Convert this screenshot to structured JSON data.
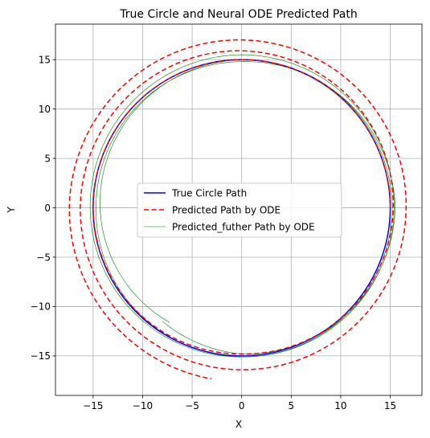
{
  "chart_data": {
    "type": "line",
    "title": "True Circle and Neural ODE Predicted Path",
    "xlabel": "X",
    "ylabel": "Y",
    "xlim": [
      -18.8,
      18.2
    ],
    "ylim": [
      -19.0,
      18.6
    ],
    "xticks": [
      -15,
      -10,
      -5,
      0,
      5,
      10,
      15
    ],
    "xtick_labels": [
      "−15",
      "−10",
      "−5",
      "0",
      "5",
      "10",
      "15"
    ],
    "yticks": [
      -15,
      -10,
      -5,
      0,
      5,
      10,
      15
    ],
    "ytick_labels": [
      "−15",
      "−10",
      "−5",
      "0",
      "5",
      "10",
      "15"
    ],
    "grid": true,
    "legend_position": "center",
    "aspect": "equal",
    "series": [
      {
        "name": "True Circle Path",
        "color": "#0000ff",
        "style": "solid",
        "shape": "circle",
        "radius": 15,
        "angle_start_deg": 0,
        "angle_end_deg": 360,
        "width": 1.5
      },
      {
        "name": "Predicted Path by ODE",
        "color": "#ff0000",
        "style": "dashed",
        "shape": "spiral",
        "points": [
          {
            "angle_deg": 0,
            "radius": 15.0
          },
          {
            "angle_deg": 90,
            "radius": 15.0
          },
          {
            "angle_deg": 180,
            "radius": 15.0
          },
          {
            "angle_deg": 270,
            "radius": 14.8
          },
          {
            "angle_deg": 360,
            "radius": 15.3
          },
          {
            "angle_deg": 450,
            "radius": 15.9
          },
          {
            "angle_deg": 540,
            "radius": 16.3
          },
          {
            "angle_deg": 630,
            "radius": 16.4
          },
          {
            "angle_deg": 720,
            "radius": 16.6
          },
          {
            "angle_deg": 810,
            "radius": 17.0
          },
          {
            "angle_deg": 900,
            "radius": 17.4
          },
          {
            "angle_deg": 980,
            "radius": 17.6
          }
        ],
        "width": 1.5
      },
      {
        "name": "Predicted_futher Path by ODE",
        "color": "#008000",
        "style": "solid",
        "shape": "spiral",
        "points": [
          {
            "angle_deg": -125,
            "radius": 14.0
          },
          {
            "angle_deg": -90,
            "radius": 14.8
          },
          {
            "angle_deg": 0,
            "radius": 15.5
          },
          {
            "angle_deg": 90,
            "radius": 14.8
          },
          {
            "angle_deg": 180,
            "radius": 14.7
          },
          {
            "angle_deg": 270,
            "radius": 15.1
          },
          {
            "angle_deg": 360,
            "radius": 15.4
          },
          {
            "angle_deg": 450,
            "radius": 15.5
          },
          {
            "angle_deg": 540,
            "radius": 15.3
          },
          {
            "angle_deg": 630,
            "radius": 15.1
          },
          {
            "angle_deg": 720,
            "radius": 15.2
          },
          {
            "angle_deg": 810,
            "radius": 15.0
          },
          {
            "angle_deg": 900,
            "radius": 14.3
          },
          {
            "angle_deg": 958,
            "radius": 13.7
          }
        ],
        "width": 0.6
      }
    ]
  }
}
